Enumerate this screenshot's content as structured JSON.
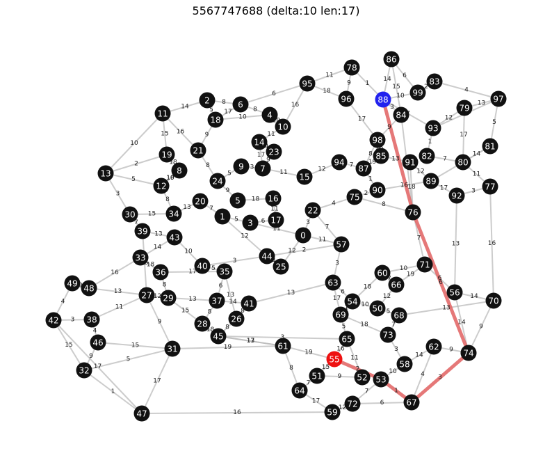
{
  "title": "5567747688 (delta:10 len:17)",
  "colors": {
    "node": "#111111",
    "source": "#2222ee",
    "target": "#ee1111",
    "edge": "#bbbbbb",
    "path": "#e06060",
    "label_text": "#ffffff"
  },
  "source": "88",
  "target": "55",
  "path": [
    "88",
    "76",
    "74",
    "67",
    "53",
    "55"
  ],
  "nodes": [
    {
      "id": "0"
    },
    {
      "id": "1"
    },
    {
      "id": "2"
    },
    {
      "id": "3"
    },
    {
      "id": "4"
    },
    {
      "id": "5"
    },
    {
      "id": "6"
    },
    {
      "id": "7"
    },
    {
      "id": "8"
    },
    {
      "id": "9"
    },
    {
      "id": "10"
    },
    {
      "id": "11"
    },
    {
      "id": "12"
    },
    {
      "id": "13"
    },
    {
      "id": "14"
    },
    {
      "id": "15"
    },
    {
      "id": "16"
    },
    {
      "id": "17"
    },
    {
      "id": "18"
    },
    {
      "id": "19"
    },
    {
      "id": "20"
    },
    {
      "id": "21"
    },
    {
      "id": "22"
    },
    {
      "id": "23"
    },
    {
      "id": "24"
    },
    {
      "id": "25"
    },
    {
      "id": "26"
    },
    {
      "id": "27"
    },
    {
      "id": "28"
    },
    {
      "id": "29"
    },
    {
      "id": "30"
    },
    {
      "id": "31"
    },
    {
      "id": "32"
    },
    {
      "id": "33"
    },
    {
      "id": "34"
    },
    {
      "id": "35"
    },
    {
      "id": "36"
    },
    {
      "id": "37"
    },
    {
      "id": "38"
    },
    {
      "id": "39"
    },
    {
      "id": "40"
    },
    {
      "id": "41"
    },
    {
      "id": "42"
    },
    {
      "id": "43"
    },
    {
      "id": "44"
    },
    {
      "id": "45"
    },
    {
      "id": "46"
    },
    {
      "id": "47"
    },
    {
      "id": "48"
    },
    {
      "id": "49"
    },
    {
      "id": "50"
    },
    {
      "id": "51"
    },
    {
      "id": "52"
    },
    {
      "id": "53"
    },
    {
      "id": "54"
    },
    {
      "id": "55"
    },
    {
      "id": "56"
    },
    {
      "id": "57"
    },
    {
      "id": "58"
    },
    {
      "id": "59"
    },
    {
      "id": "60"
    },
    {
      "id": "61"
    },
    {
      "id": "62"
    },
    {
      "id": "63"
    },
    {
      "id": "64"
    },
    {
      "id": "65"
    },
    {
      "id": "66"
    },
    {
      "id": "67"
    },
    {
      "id": "68"
    },
    {
      "id": "69"
    },
    {
      "id": "70"
    },
    {
      "id": "71"
    },
    {
      "id": "72"
    },
    {
      "id": "73"
    },
    {
      "id": "74"
    },
    {
      "id": "75"
    },
    {
      "id": "76"
    },
    {
      "id": "77"
    },
    {
      "id": "78"
    },
    {
      "id": "79"
    },
    {
      "id": "80"
    },
    {
      "id": "81"
    },
    {
      "id": "82"
    },
    {
      "id": "83"
    },
    {
      "id": "84"
    },
    {
      "id": "85"
    },
    {
      "id": "86"
    },
    {
      "id": "87"
    },
    {
      "id": "88"
    },
    {
      "id": "89"
    },
    {
      "id": "90"
    },
    {
      "id": "91"
    },
    {
      "id": "92"
    },
    {
      "id": "93"
    },
    {
      "id": "94"
    },
    {
      "id": "95"
    },
    {
      "id": "96"
    },
    {
      "id": "97"
    },
    {
      "id": "98"
    },
    {
      "id": "99"
    }
  ],
  "path_edges": [
    {
      "a": "88",
      "b": "76"
    },
    {
      "a": "76",
      "b": "74",
      "w": "6"
    },
    {
      "a": "74",
      "b": "67",
      "w": "3"
    },
    {
      "a": "67",
      "b": "53",
      "w": "1"
    },
    {
      "a": "53",
      "b": "55",
      "w": "2"
    }
  ],
  "edges": [
    {
      "a": "13",
      "b": "11",
      "w": "10"
    },
    {
      "a": "13",
      "b": "30",
      "w": "3"
    },
    {
      "a": "13",
      "b": "19",
      "w": "2"
    },
    {
      "a": "13",
      "b": "12",
      "w": "5"
    },
    {
      "a": "11",
      "b": "2",
      "w": "14"
    },
    {
      "a": "11",
      "b": "19",
      "w": "15"
    },
    {
      "a": "11",
      "b": "21",
      "w": "16"
    },
    {
      "a": "2",
      "b": "6",
      "w": "8"
    },
    {
      "a": "2",
      "b": "18",
      "w": "5"
    },
    {
      "a": "6",
      "b": "4",
      "w": "8"
    },
    {
      "a": "95",
      "b": "6",
      "w": "6"
    },
    {
      "a": "95",
      "b": "78",
      "w": "11"
    },
    {
      "a": "78",
      "b": "88",
      "w": "1"
    },
    {
      "a": "78",
      "b": "96",
      "w": "9"
    },
    {
      "a": "86",
      "b": "88",
      "w": "14"
    },
    {
      "a": "86",
      "b": "99",
      "w": "6"
    },
    {
      "a": "86",
      "b": "84",
      "w": "15"
    },
    {
      "a": "83",
      "b": "97",
      "w": "4"
    },
    {
      "a": "83",
      "b": "99",
      "w": "2"
    },
    {
      "a": "97",
      "b": "79",
      "w": "13"
    },
    {
      "a": "97",
      "b": "81",
      "w": "5"
    },
    {
      "a": "79",
      "b": "93",
      "w": "12"
    },
    {
      "a": "81",
      "b": "80",
      "w": "14"
    },
    {
      "a": "80",
      "b": "82",
      "w": "7"
    },
    {
      "a": "77",
      "b": "92",
      "w": "3"
    },
    {
      "a": "77",
      "b": "70",
      "w": "16"
    },
    {
      "a": "92",
      "b": "89",
      "w": "17"
    },
    {
      "a": "89",
      "b": "91",
      "w": "12"
    },
    {
      "a": "91",
      "b": "85",
      "w": "13"
    },
    {
      "a": "85",
      "b": "98",
      "w": "16"
    },
    {
      "a": "98",
      "b": "87",
      "w": "8"
    },
    {
      "a": "87",
      "b": "90",
      "w": "1"
    },
    {
      "a": "90",
      "b": "75",
      "w": "2"
    },
    {
      "a": "75",
      "b": "22",
      "w": "4"
    },
    {
      "a": "94",
      "b": "15",
      "w": "12"
    },
    {
      "a": "15",
      "b": "7",
      "w": "11"
    },
    {
      "a": "7",
      "b": "23",
      "w": "9"
    },
    {
      "a": "23",
      "b": "14",
      "w": "4"
    },
    {
      "a": "14",
      "b": "10",
      "w": "11"
    },
    {
      "a": "10",
      "b": "4",
      "w": "19"
    },
    {
      "a": "21",
      "b": "24",
      "w": "8"
    },
    {
      "a": "24",
      "b": "9",
      "w": "5"
    },
    {
      "a": "8",
      "b": "12",
      "w": "10"
    },
    {
      "a": "12",
      "b": "34",
      "w": "8"
    },
    {
      "a": "34",
      "b": "20",
      "w": "13"
    },
    {
      "a": "20",
      "b": "1",
      "w": "7"
    },
    {
      "a": "1",
      "b": "3",
      "w": "5"
    },
    {
      "a": "3",
      "b": "17",
      "w": "6"
    },
    {
      "a": "17",
      "b": "16",
      "w": "11"
    },
    {
      "a": "16",
      "b": "5",
      "w": "18"
    },
    {
      "a": "5",
      "b": "24",
      "w": "9"
    },
    {
      "a": "30",
      "b": "39",
      "w": "7"
    },
    {
      "a": "39",
      "b": "43",
      "w": "13"
    },
    {
      "a": "43",
      "b": "33",
      "w": "14"
    },
    {
      "a": "33",
      "b": "36",
      "w": "18"
    },
    {
      "a": "36",
      "b": "29",
      "w": "8"
    },
    {
      "a": "29",
      "b": "27",
      "w": "12"
    },
    {
      "a": "27",
      "b": "48",
      "w": "13"
    },
    {
      "a": "48",
      "b": "49",
      "w": "9"
    },
    {
      "a": "49",
      "b": "42",
      "w": "4"
    },
    {
      "a": "42",
      "b": "38",
      "w": "3"
    },
    {
      "a": "42",
      "b": "32",
      "w": "15"
    },
    {
      "a": "38",
      "b": "46",
      "w": "4"
    },
    {
      "a": "46",
      "b": "32",
      "w": "9"
    },
    {
      "a": "32",
      "b": "47",
      "w": "1"
    },
    {
      "a": "32",
      "b": "31",
      "w": "5"
    },
    {
      "a": "31",
      "b": "47",
      "w": "17"
    },
    {
      "a": "47",
      "b": "59",
      "w": "16"
    },
    {
      "a": "59",
      "b": "72",
      "w": "12"
    },
    {
      "a": "72",
      "b": "67",
      "w": "6"
    },
    {
      "a": "64",
      "b": "61",
      "w": "8"
    },
    {
      "a": "61",
      "b": "45",
      "w": "17"
    },
    {
      "a": "45",
      "b": "28",
      "w": "18"
    },
    {
      "a": "28",
      "b": "37",
      "w": "8"
    },
    {
      "a": "37",
      "b": "41",
      "w": "14"
    },
    {
      "a": "41",
      "b": "26",
      "w": "8"
    },
    {
      "a": "26",
      "b": "35",
      "w": "13"
    },
    {
      "a": "35",
      "b": "40",
      "w": "5"
    },
    {
      "a": "40",
      "b": "44",
      "w": "3"
    },
    {
      "a": "44",
      "b": "25",
      "w": "4"
    },
    {
      "a": "25",
      "b": "0",
      "w": "12"
    },
    {
      "a": "0",
      "b": "22",
      "w": "3"
    },
    {
      "a": "22",
      "b": "57",
      "w": "7"
    },
    {
      "a": "57",
      "b": "63",
      "w": "3"
    },
    {
      "a": "63",
      "b": "54",
      "w": "6"
    },
    {
      "a": "54",
      "b": "69",
      "w": "1"
    },
    {
      "a": "69",
      "b": "65",
      "w": "5"
    },
    {
      "a": "65",
      "b": "52",
      "w": "11"
    },
    {
      "a": "52",
      "b": "51",
      "w": "9"
    },
    {
      "a": "51",
      "b": "64",
      "w": "7"
    },
    {
      "a": "60",
      "b": "66",
      "w": "7"
    },
    {
      "a": "66",
      "b": "50",
      "w": "12"
    },
    {
      "a": "50",
      "b": "68",
      "w": "5"
    },
    {
      "a": "68",
      "b": "73",
      "w": "7"
    },
    {
      "a": "73",
      "b": "58",
      "w": "3"
    },
    {
      "a": "58",
      "b": "53",
      "w": "10"
    },
    {
      "a": "62",
      "b": "74",
      "w": "9"
    },
    {
      "a": "56",
      "b": "71",
      "w": "6"
    },
    {
      "a": "71",
      "b": "60",
      "w": "10"
    },
    {
      "a": "70",
      "b": "74",
      "w": "9"
    },
    {
      "a": "70",
      "b": "56",
      "w": "14"
    },
    {
      "a": "92",
      "b": "56",
      "w": "13"
    },
    {
      "a": "74",
      "b": "56",
      "w": "14"
    },
    {
      "a": "55",
      "b": "51",
      "w": "15"
    },
    {
      "a": "55",
      "b": "65",
      "w": "16"
    },
    {
      "a": "61",
      "b": "55",
      "w": "19"
    },
    {
      "a": "45",
      "b": "65",
      "w": "3"
    },
    {
      "a": "31",
      "b": "61",
      "w": "19"
    },
    {
      "a": "42",
      "b": "47",
      "w": "17"
    },
    {
      "a": "76",
      "b": "71",
      "w": "7"
    },
    {
      "a": "76",
      "b": "84",
      "w": "19"
    },
    {
      "a": "84",
      "b": "88",
      "w": "3"
    },
    {
      "a": "93",
      "b": "88",
      "w": "7"
    },
    {
      "a": "96",
      "b": "98",
      "w": "17"
    },
    {
      "a": "18",
      "b": "4",
      "w": "10"
    },
    {
      "a": "19",
      "b": "8",
      "w": "18"
    },
    {
      "a": "30",
      "b": "34",
      "w": "15"
    },
    {
      "a": "43",
      "b": "40",
      "w": "10"
    },
    {
      "a": "27",
      "b": "31",
      "w": "9"
    },
    {
      "a": "38",
      "b": "27",
      "w": "11"
    },
    {
      "a": "29",
      "b": "37",
      "w": "13"
    },
    {
      "a": "36",
      "b": "35",
      "w": "17"
    },
    {
      "a": "35",
      "b": "37",
      "w": "6"
    },
    {
      "a": "41",
      "b": "63",
      "w": "13"
    },
    {
      "a": "44",
      "b": "57",
      "w": "2"
    },
    {
      "a": "0",
      "b": "57",
      "w": "11"
    },
    {
      "a": "94",
      "b": "87",
      "w": "7"
    },
    {
      "a": "75",
      "b": "76",
      "w": "8"
    },
    {
      "a": "82",
      "b": "93",
      "w": "1"
    },
    {
      "a": "90",
      "b": "89",
      "w": "16"
    },
    {
      "a": "54",
      "b": "50",
      "w": "10"
    },
    {
      "a": "69",
      "b": "73",
      "w": "18"
    },
    {
      "a": "62",
      "b": "58",
      "w": "14"
    },
    {
      "a": "67",
      "b": "62",
      "w": "4"
    },
    {
      "a": "53",
      "b": "72",
      "w": "7"
    },
    {
      "a": "59",
      "b": "64",
      "w": "17"
    },
    {
      "a": "45",
      "b": "61",
      "w": "13"
    },
    {
      "a": "33",
      "b": "48",
      "w": "16"
    },
    {
      "a": "39",
      "b": "27",
      "w": "15"
    },
    {
      "a": "1",
      "b": "44",
      "w": "12"
    },
    {
      "a": "3",
      "b": "0",
      "w": "11"
    },
    {
      "a": "9",
      "b": "7",
      "w": "3"
    },
    {
      "a": "14",
      "b": "7",
      "w": "17"
    },
    {
      "a": "10",
      "b": "95",
      "w": "16"
    },
    {
      "a": "98",
      "b": "84",
      "w": "9"
    },
    {
      "a": "85",
      "b": "87",
      "w": "19"
    },
    {
      "a": "91",
      "b": "76",
      "w": "18"
    },
    {
      "a": "79",
      "b": "80",
      "w": "17"
    },
    {
      "a": "97",
      "b": "93",
      "w": "15"
    },
    {
      "a": "81",
      "b": "89",
      "w": "11"
    },
    {
      "a": "77",
      "b": "80",
      "w": "11"
    },
    {
      "a": "68",
      "b": "70",
      "w": "13"
    },
    {
      "a": "66",
      "b": "71",
      "w": "19"
    },
    {
      "a": "60",
      "b": "54",
      "w": "18"
    },
    {
      "a": "63",
      "b": "69",
      "w": "17"
    },
    {
      "a": "26",
      "b": "45",
      "w": "8"
    },
    {
      "a": "28",
      "b": "29",
      "w": "15"
    },
    {
      "a": "46",
      "b": "31",
      "w": "15"
    },
    {
      "a": "12",
      "b": "8",
      "w": "19"
    },
    {
      "a": "21",
      "b": "18",
      "w": "9"
    },
    {
      "a": "6",
      "b": "18",
      "w": "17"
    },
    {
      "a": "95",
      "b": "96",
      "w": "18"
    },
    {
      "a": "88",
      "b": "99",
      "w": "10"
    }
  ]
}
